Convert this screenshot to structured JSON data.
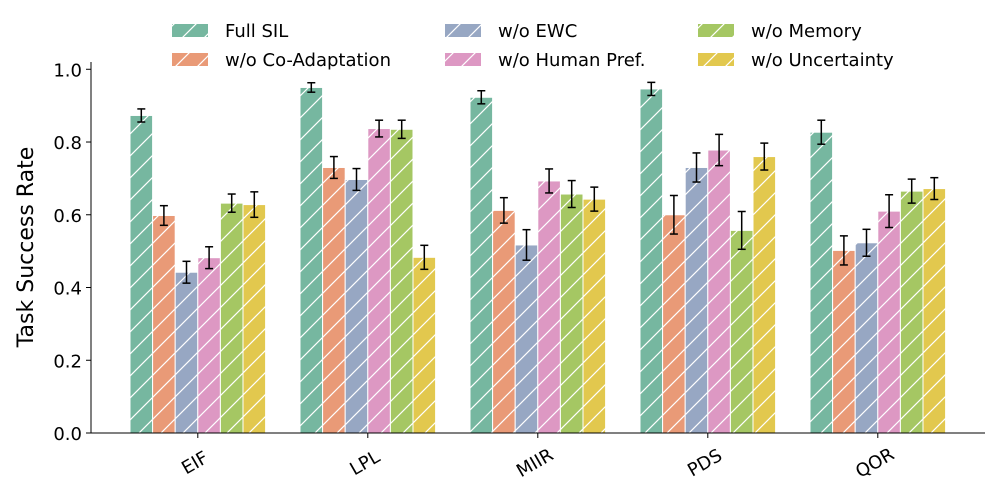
{
  "chart_data": {
    "type": "bar",
    "title": "",
    "xlabel": "",
    "ylabel": "Task Success Rate",
    "ylim": [
      0.0,
      1.02
    ],
    "yticks": [
      "0.0",
      "0.2",
      "0.4",
      "0.6",
      "0.8",
      "1.0"
    ],
    "grid": false,
    "legend_position": "top",
    "categories": [
      "EIF",
      "LPL",
      "MIIR",
      "PDS",
      "QOR"
    ],
    "series": [
      {
        "name": "Full SIL",
        "color": "#76b7a0",
        "values": [
          0.873,
          0.95,
          0.923,
          0.946,
          0.827
        ],
        "errors": [
          0.018,
          0.013,
          0.018,
          0.018,
          0.033
        ]
      },
      {
        "name": "w/o Co-Adaptation",
        "color": "#e99a77",
        "values": [
          0.598,
          0.73,
          0.612,
          0.6,
          0.502
        ],
        "errors": [
          0.027,
          0.03,
          0.035,
          0.053,
          0.04
        ]
      },
      {
        "name": "w/o EWC",
        "color": "#97a7c3",
        "values": [
          0.442,
          0.697,
          0.517,
          0.73,
          0.523
        ],
        "errors": [
          0.03,
          0.03,
          0.042,
          0.04,
          0.037
        ]
      },
      {
        "name": "w/o Human Pref.",
        "color": "#dd98c3",
        "values": [
          0.482,
          0.837,
          0.693,
          0.778,
          0.61
        ],
        "errors": [
          0.03,
          0.023,
          0.033,
          0.043,
          0.045
        ]
      },
      {
        "name": "w/o Memory",
        "color": "#a5c763",
        "values": [
          0.632,
          0.835,
          0.657,
          0.557,
          0.665
        ],
        "errors": [
          0.025,
          0.025,
          0.037,
          0.052,
          0.033
        ]
      },
      {
        "name": "w/o Uncertainty",
        "color": "#e2c84e",
        "values": [
          0.628,
          0.483,
          0.643,
          0.76,
          0.672
        ],
        "errors": [
          0.035,
          0.033,
          0.033,
          0.037,
          0.03
        ]
      }
    ]
  }
}
